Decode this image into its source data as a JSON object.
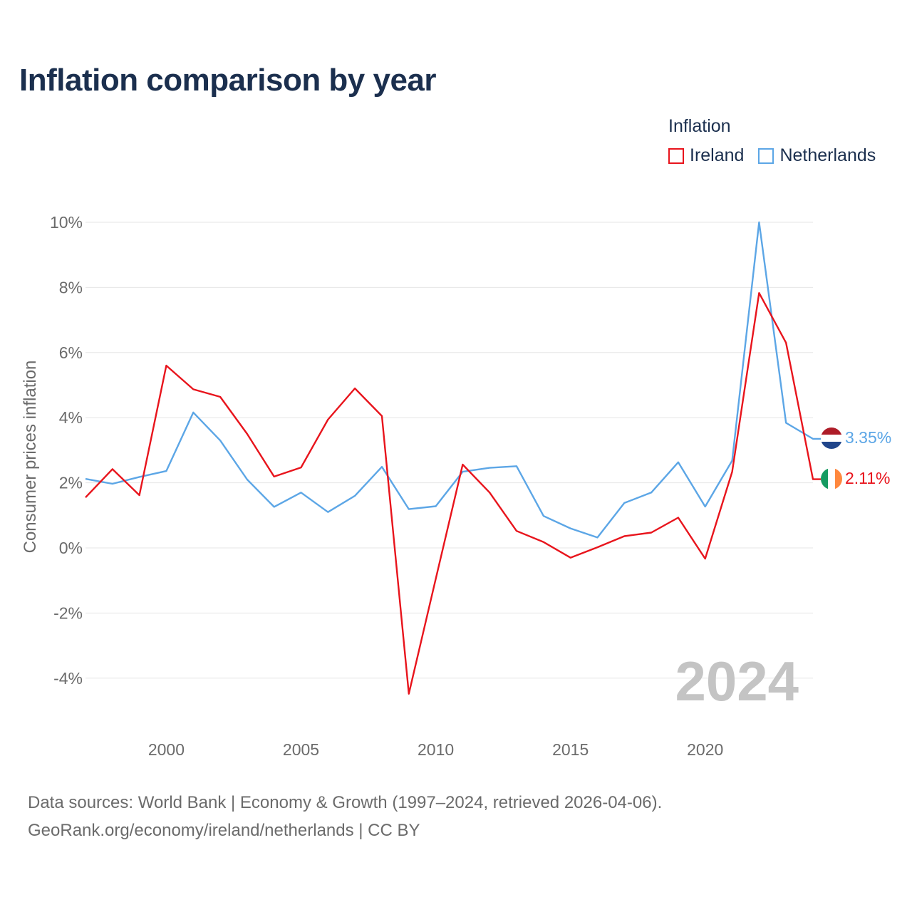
{
  "header": {
    "title": "Inflation comparison by year"
  },
  "legend": {
    "title": "Inflation",
    "items": [
      {
        "label": "Ireland",
        "color": "#e8141c"
      },
      {
        "label": "Netherlands",
        "color": "#5ca6e6"
      }
    ]
  },
  "footer": {
    "line1": "Data sources: World Bank | Economy & Growth (1997–2024, retrieved 2026-04-06).",
    "line2": "GeoRank.org/economy/ireland/netherlands | CC BY"
  },
  "chart_data": {
    "type": "line",
    "title": "Inflation comparison by year",
    "xlabel": "",
    "ylabel": "Consumer prices inflation",
    "xlim": [
      1997,
      2024
    ],
    "ylim": [
      -4.5,
      10
    ],
    "xticks": [
      2000,
      2005,
      2010,
      2015,
      2020
    ],
    "yticks": [
      -4,
      -2,
      0,
      2,
      4,
      6,
      8,
      10
    ],
    "ytick_labels": [
      "-4%",
      "-2%",
      "0%",
      "2%",
      "4%",
      "6%",
      "8%",
      "10%"
    ],
    "grid": true,
    "year_marker": "2024",
    "x": [
      1997,
      1998,
      1999,
      2000,
      2001,
      2002,
      2003,
      2004,
      2005,
      2006,
      2007,
      2008,
      2009,
      2010,
      2011,
      2012,
      2013,
      2014,
      2015,
      2016,
      2017,
      2018,
      2019,
      2020,
      2021,
      2022,
      2023,
      2024
    ],
    "series": [
      {
        "name": "Ireland",
        "color": "#e8141c",
        "end_label": "2.11%",
        "flag": "ireland-flag",
        "values": [
          1.55,
          2.42,
          1.62,
          5.6,
          4.87,
          4.64,
          3.5,
          2.19,
          2.47,
          3.94,
          4.9,
          4.05,
          -4.48,
          -0.95,
          2.56,
          1.7,
          0.52,
          0.18,
          -0.3,
          0.02,
          0.36,
          0.47,
          0.93,
          -0.33,
          2.34,
          7.83,
          6.3,
          2.11
        ]
      },
      {
        "name": "Netherlands",
        "color": "#5ca6e6",
        "end_label": "3.35%",
        "flag": "netherlands-flag",
        "values": [
          2.12,
          1.97,
          2.18,
          2.36,
          4.16,
          3.3,
          2.1,
          1.26,
          1.7,
          1.1,
          1.6,
          2.49,
          1.19,
          1.28,
          2.34,
          2.46,
          2.51,
          0.98,
          0.6,
          0.32,
          1.38,
          1.7,
          2.63,
          1.27,
          2.68,
          10.0,
          3.84,
          3.35
        ]
      }
    ]
  }
}
